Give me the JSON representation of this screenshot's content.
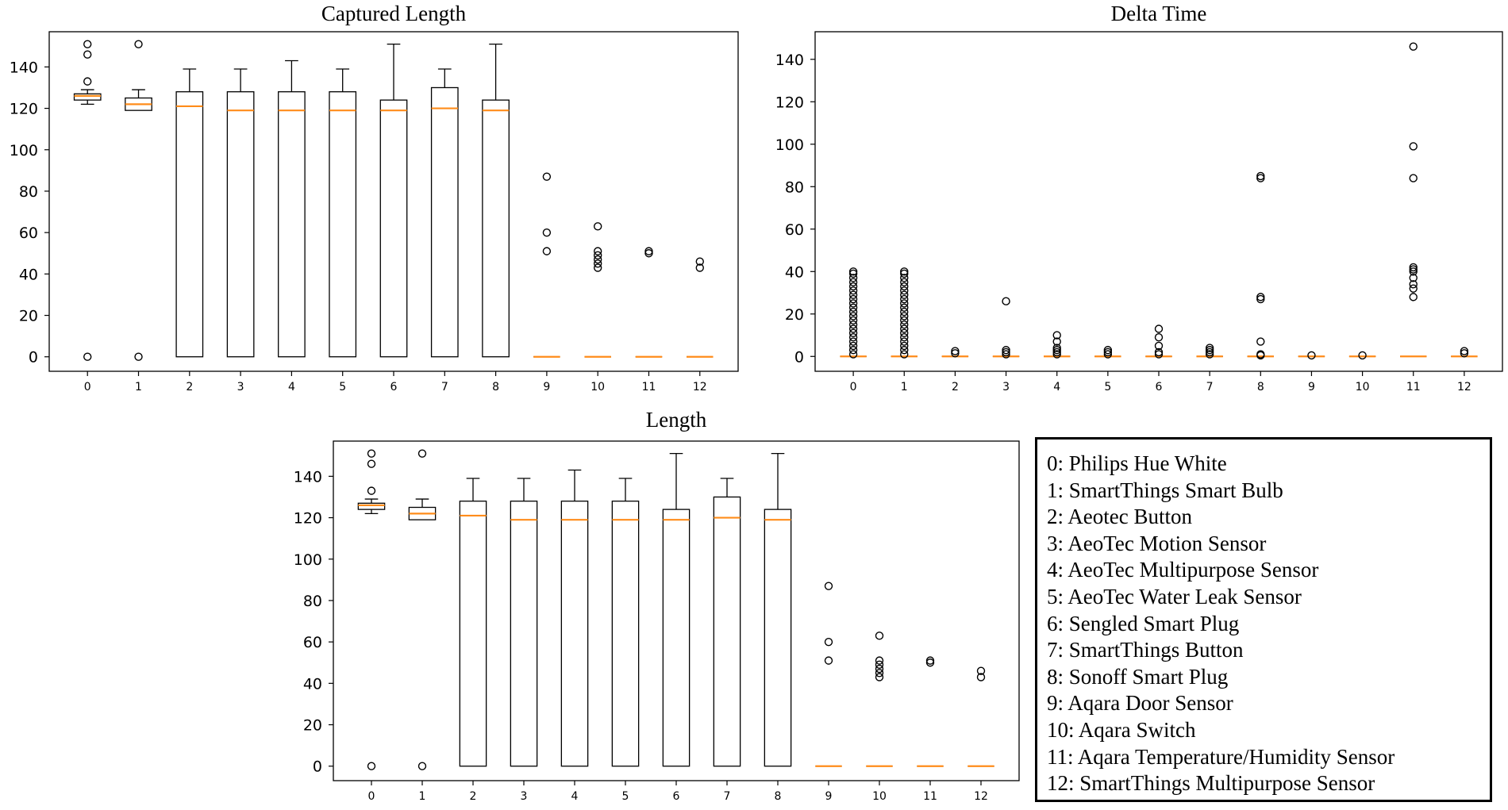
{
  "chart_data": [
    {
      "type": "box",
      "title": "Captured Length",
      "categories": [
        "0",
        "1",
        "2",
        "3",
        "4",
        "5",
        "6",
        "7",
        "8",
        "9",
        "10",
        "11",
        "12"
      ],
      "yticks": [
        "0",
        "20",
        "40",
        "60",
        "80",
        "100",
        "120",
        "140"
      ],
      "ylim": [
        -7,
        157
      ],
      "boxes": [
        {
          "whisker_low": 122,
          "q1": 124,
          "median": 126,
          "q3": 127,
          "whisker_high": 129,
          "fliers": [
            0,
            133,
            146,
            151
          ]
        },
        {
          "whisker_low": 119,
          "q1": 119,
          "median": 122,
          "q3": 125,
          "whisker_high": 129,
          "fliers": [
            0,
            151
          ]
        },
        {
          "whisker_low": 0,
          "q1": 0,
          "median": 121,
          "q3": 128,
          "whisker_high": 139,
          "fliers": []
        },
        {
          "whisker_low": 0,
          "q1": 0,
          "median": 119,
          "q3": 128,
          "whisker_high": 139,
          "fliers": []
        },
        {
          "whisker_low": 0,
          "q1": 0,
          "median": 119,
          "q3": 128,
          "whisker_high": 143,
          "fliers": []
        },
        {
          "whisker_low": 0,
          "q1": 0,
          "median": 119,
          "q3": 128,
          "whisker_high": 139,
          "fliers": []
        },
        {
          "whisker_low": 0,
          "q1": 0,
          "median": 119,
          "q3": 124,
          "whisker_high": 151,
          "fliers": []
        },
        {
          "whisker_low": 0,
          "q1": 0,
          "median": 120,
          "q3": 130,
          "whisker_high": 139,
          "fliers": []
        },
        {
          "whisker_low": 0,
          "q1": 0,
          "median": 119,
          "q3": 124,
          "whisker_high": 151,
          "fliers": []
        },
        {
          "whisker_low": 0,
          "q1": 0,
          "median": 0,
          "q3": 0,
          "whisker_high": 0,
          "fliers": [
            51,
            60,
            87
          ]
        },
        {
          "whisker_low": 0,
          "q1": 0,
          "median": 0,
          "q3": 0,
          "whisker_high": 0,
          "fliers": [
            43,
            45,
            47,
            49,
            51,
            63
          ]
        },
        {
          "whisker_low": 0,
          "q1": 0,
          "median": 0,
          "q3": 0,
          "whisker_high": 0,
          "fliers": [
            50,
            51
          ]
        },
        {
          "whisker_low": 0,
          "q1": 0,
          "median": 0,
          "q3": 0,
          "whisker_high": 0,
          "fliers": [
            43,
            46
          ]
        }
      ]
    },
    {
      "type": "box",
      "title": "Delta Time",
      "categories": [
        "0",
        "1",
        "2",
        "3",
        "4",
        "5",
        "6",
        "7",
        "8",
        "9",
        "10",
        "11",
        "12"
      ],
      "yticks": [
        "0",
        "20",
        "40",
        "60",
        "80",
        "100",
        "120",
        "140"
      ],
      "ylim": [
        -7,
        153
      ],
      "boxes": [
        {
          "whisker_low": 0,
          "q1": 0,
          "median": 0,
          "q3": 0,
          "whisker_high": 0,
          "fliers": [
            1,
            3,
            5,
            7,
            9,
            11,
            13,
            15,
            17,
            19,
            21,
            23,
            25,
            27,
            29,
            31,
            33,
            35,
            37,
            39,
            40
          ]
        },
        {
          "whisker_low": 0,
          "q1": 0,
          "median": 0,
          "q3": 0,
          "whisker_high": 0,
          "fliers": [
            1,
            3,
            5,
            7,
            9,
            11,
            13,
            15,
            17,
            19,
            21,
            23,
            25,
            27,
            29,
            31,
            33,
            35,
            37,
            39,
            40
          ]
        },
        {
          "whisker_low": 0,
          "q1": 0,
          "median": 0,
          "q3": 0,
          "whisker_high": 0,
          "fliers": [
            1.5,
            2.5
          ]
        },
        {
          "whisker_low": 0,
          "q1": 0,
          "median": 0,
          "q3": 0,
          "whisker_high": 0,
          "fliers": [
            1,
            2,
            3,
            26
          ]
        },
        {
          "whisker_low": 0,
          "q1": 0,
          "median": 0,
          "q3": 0,
          "whisker_high": 0,
          "fliers": [
            1,
            2,
            3,
            4,
            7,
            10
          ]
        },
        {
          "whisker_low": 0,
          "q1": 0,
          "median": 0,
          "q3": 0,
          "whisker_high": 0,
          "fliers": [
            1,
            2,
            3
          ]
        },
        {
          "whisker_low": 0,
          "q1": 0,
          "median": 0,
          "q3": 0,
          "whisker_high": 0,
          "fliers": [
            1,
            2,
            5,
            9,
            13
          ]
        },
        {
          "whisker_low": 0,
          "q1": 0,
          "median": 0,
          "q3": 0,
          "whisker_high": 0,
          "fliers": [
            1,
            2,
            3,
            4
          ]
        },
        {
          "whisker_low": 0,
          "q1": 0,
          "median": 0,
          "q3": 0,
          "whisker_high": 0,
          "fliers": [
            0.5,
            1,
            7,
            27,
            28,
            84,
            85
          ]
        },
        {
          "whisker_low": 0,
          "q1": 0,
          "median": 0,
          "q3": 0,
          "whisker_high": 0,
          "fliers": [
            0.5
          ]
        },
        {
          "whisker_low": 0,
          "q1": 0,
          "median": 0,
          "q3": 0,
          "whisker_high": 0,
          "fliers": [
            0.5
          ]
        },
        {
          "whisker_low": 0,
          "q1": 0,
          "median": 0,
          "q3": 0,
          "whisker_high": 0,
          "fliers": [
            28,
            32,
            34,
            37,
            40,
            41,
            42,
            84,
            99,
            146
          ]
        },
        {
          "whisker_low": 0,
          "q1": 0,
          "median": 0,
          "q3": 0,
          "whisker_high": 0,
          "fliers": [
            1.5,
            2.5
          ]
        }
      ]
    },
    {
      "type": "box",
      "title": "Length",
      "categories": [
        "0",
        "1",
        "2",
        "3",
        "4",
        "5",
        "6",
        "7",
        "8",
        "9",
        "10",
        "11",
        "12"
      ],
      "yticks": [
        "0",
        "20",
        "40",
        "60",
        "80",
        "100",
        "120",
        "140"
      ],
      "ylim": [
        -7,
        157
      ],
      "boxes": [
        {
          "whisker_low": 122,
          "q1": 124,
          "median": 126,
          "q3": 127,
          "whisker_high": 129,
          "fliers": [
            0,
            133,
            146,
            151
          ]
        },
        {
          "whisker_low": 119,
          "q1": 119,
          "median": 122,
          "q3": 125,
          "whisker_high": 129,
          "fliers": [
            0,
            151
          ]
        },
        {
          "whisker_low": 0,
          "q1": 0,
          "median": 121,
          "q3": 128,
          "whisker_high": 139,
          "fliers": []
        },
        {
          "whisker_low": 0,
          "q1": 0,
          "median": 119,
          "q3": 128,
          "whisker_high": 139,
          "fliers": []
        },
        {
          "whisker_low": 0,
          "q1": 0,
          "median": 119,
          "q3": 128,
          "whisker_high": 143,
          "fliers": []
        },
        {
          "whisker_low": 0,
          "q1": 0,
          "median": 119,
          "q3": 128,
          "whisker_high": 139,
          "fliers": []
        },
        {
          "whisker_low": 0,
          "q1": 0,
          "median": 119,
          "q3": 124,
          "whisker_high": 151,
          "fliers": []
        },
        {
          "whisker_low": 0,
          "q1": 0,
          "median": 120,
          "q3": 130,
          "whisker_high": 139,
          "fliers": []
        },
        {
          "whisker_low": 0,
          "q1": 0,
          "median": 119,
          "q3": 124,
          "whisker_high": 151,
          "fliers": []
        },
        {
          "whisker_low": 0,
          "q1": 0,
          "median": 0,
          "q3": 0,
          "whisker_high": 0,
          "fliers": [
            51,
            60,
            87
          ]
        },
        {
          "whisker_low": 0,
          "q1": 0,
          "median": 0,
          "q3": 0,
          "whisker_high": 0,
          "fliers": [
            43,
            45,
            47,
            49,
            51,
            63
          ]
        },
        {
          "whisker_low": 0,
          "q1": 0,
          "median": 0,
          "q3": 0,
          "whisker_high": 0,
          "fliers": [
            50,
            51
          ]
        },
        {
          "whisker_low": 0,
          "q1": 0,
          "median": 0,
          "q3": 0,
          "whisker_high": 0,
          "fliers": [
            43,
            46
          ]
        }
      ]
    }
  ],
  "legend": {
    "items": [
      "0: Philips Hue White",
      "1: SmartThings Smart Bulb",
      "2: Aeotec Button",
      "3: AeoTec Motion Sensor",
      "4: AeoTec Multipurpose Sensor",
      "5: AeoTec Water Leak Sensor",
      "6: Sengled Smart Plug",
      "7: SmartThings Button",
      "8: Sonoff Smart Plug",
      "9: Aqara Door Sensor",
      "10: Aqara Switch",
      "11: Aqara Temperature/Humidity Sensor",
      "12: SmartThings Multipurpose Sensor"
    ]
  },
  "colors": {
    "median": "#ff8c1a",
    "box": "#000000"
  }
}
